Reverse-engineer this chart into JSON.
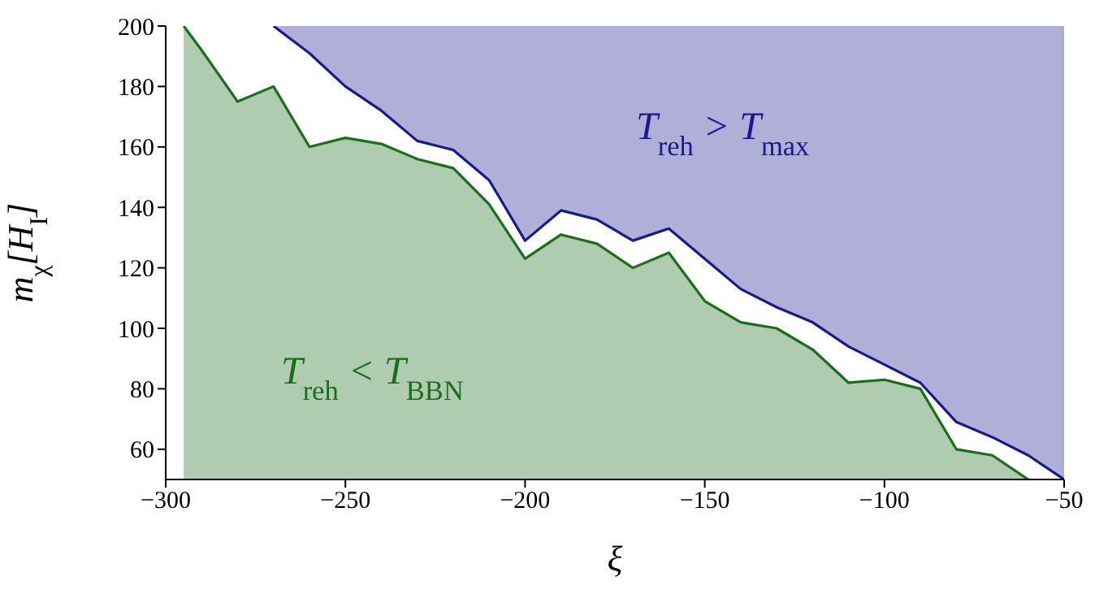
{
  "chart_data": {
    "type": "area",
    "xlabel": "ξ",
    "ylabel": "m$_{χ}$[H$_{I}$]",
    "xlim": [
      -300,
      -50
    ],
    "ylim": [
      50,
      200
    ],
    "xticks": [
      -300,
      -250,
      -200,
      -150,
      -100,
      -50
    ],
    "yticks": [
      60,
      80,
      100,
      120,
      140,
      160,
      180,
      200
    ],
    "series": [
      {
        "type": "line",
        "color": "#1a1a8c",
        "x": [
          -270,
          -260,
          -250,
          -240,
          -230,
          -220,
          -210,
          -200,
          -190,
          -180,
          -170,
          -160,
          -150,
          -140,
          -130,
          -120,
          -110,
          -100,
          -90,
          -80,
          -70,
          -60,
          -50
        ],
        "values": [
          200,
          191,
          180,
          172,
          162,
          159,
          149,
          129,
          139,
          136,
          129,
          133,
          123,
          113,
          107,
          102,
          94,
          88,
          82,
          69,
          64,
          58,
          50
        ],
        "lower": [
          200,
          191,
          180,
          172,
          162,
          159,
          149,
          129,
          139,
          136,
          129,
          133,
          123,
          113,
          107,
          102,
          94,
          88,
          82,
          69,
          64,
          58,
          50
        ],
        "upper": [
          200,
          200,
          200,
          200,
          200,
          200,
          200,
          200,
          200,
          200,
          200,
          200,
          200,
          200,
          200,
          200,
          200,
          200,
          200,
          200,
          200,
          200,
          200
        ]
      },
      {
        "color": "#1c6e1c",
        "x": [
          -295,
          -290,
          -280,
          -270,
          -260,
          -250,
          -240,
          -230,
          -220,
          -210,
          -200,
          -190,
          -180,
          -170,
          -160,
          -150,
          -140,
          -130,
          -120,
          -110,
          -100,
          -90,
          -80,
          -70,
          -60
        ],
        "values": [
          200,
          192,
          175,
          180,
          160,
          163,
          161,
          156,
          153,
          141,
          123,
          131,
          128,
          120,
          125,
          109,
          102,
          100,
          93,
          82,
          83,
          80,
          60,
          58,
          50
        ]
      }
    ],
    "annotations": [
      "T$_{reh}$ > T$_{max}$",
      "T$_{reh}$ < T$_{BBN}$"
    ]
  }
}
